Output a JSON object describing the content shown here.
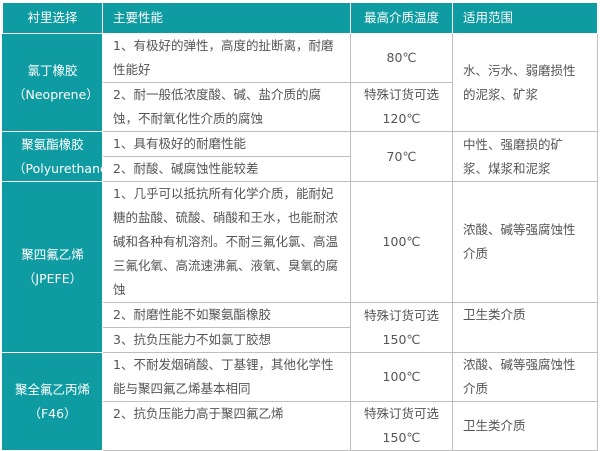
{
  "headers": [
    "衬里选择",
    "主要性能",
    "最高介质温度",
    "适用范围"
  ],
  "colors": {
    "header_bg": "#0e9ba1",
    "header_text": "#ffffff",
    "text": "#555555"
  },
  "rows": [
    {
      "lining": "氯丁橡胶",
      "lining_en": "（Neoprene）",
      "perf": [
        "1、有极好的弹性，高度的扯断离，耐磨性能好",
        "2、耐一般低浓度酸、碱、盐介质的腐蚀，不耐氧化性介质的腐蚀"
      ],
      "temp": [
        "80℃",
        "特殊订货可选",
        "120℃"
      ],
      "scope": "水、污水、弱磨损性的泥浆、矿浆"
    },
    {
      "lining": "聚氨酯橡胶",
      "lining_en": "（Polyurethane）",
      "perf": [
        "1、具有极好的耐磨性能",
        "2、耐酸、碱腐蚀性能较差"
      ],
      "temp": [
        "70℃"
      ],
      "scope": "中性、强磨损的矿浆、煤浆和泥浆"
    },
    {
      "lining": "聚四氟乙烯",
      "lining_en": "（JPEFE）",
      "perf": [
        "1、几乎可以抵抗所有化学介质，能耐妃糖的盐酸、硫酸、硝酸和王水，也能耐浓碱和各种有机溶剂。不耐三氟化氯、高温三氟化氧、高流速沸氟、液氧、臭氧的腐蚀",
        "2、耐磨性能不如聚氨酯橡胶",
        "3、抗负压能力不如氯丁胶想"
      ],
      "temp": [
        "100℃",
        "特殊订货可选",
        "150℃"
      ],
      "scope": [
        "浓酸、碱等强腐蚀性介质",
        "卫生类介质"
      ]
    },
    {
      "lining": "聚全氟乙丙烯",
      "lining_en": "（F46）",
      "perf": [
        "1、不耐发烟硝酸、丁基锂，其他化学性能与聚四氟乙烯基本相同",
        "2、抗负压能力高于聚四氟乙烯"
      ],
      "temp": [
        "100℃",
        "特殊订货可选",
        "150℃"
      ],
      "scope": [
        "浓酸、碱等强腐蚀性介质",
        "卫生类介质"
      ]
    }
  ]
}
